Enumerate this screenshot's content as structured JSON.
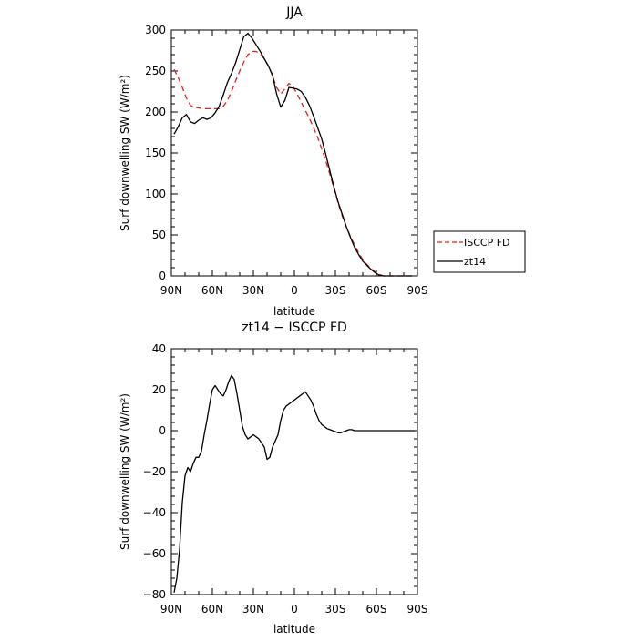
{
  "chart_data": [
    {
      "type": "line",
      "title": "JJA",
      "xlabel": "latitude",
      "ylabel": "Surf downwelling SW (W/m²)",
      "xlim": [
        90,
        -90
      ],
      "ylim": [
        0,
        300
      ],
      "xticks": [
        90,
        60,
        30,
        0,
        -30,
        -60,
        -90
      ],
      "xtick_labels": [
        "90N",
        "60N",
        "30N",
        "0",
        "30S",
        "60S",
        "90S"
      ],
      "yticks": [
        0,
        50,
        100,
        150,
        200,
        250,
        300
      ],
      "ytick_labels": [
        "0",
        "50",
        "100",
        "150",
        "200",
        "250",
        "300"
      ],
      "grid": false,
      "legend_position": "right",
      "series": [
        {
          "name": "ISCCP FD",
          "color": "#e0201b",
          "dash": "dashed",
          "x": [
            88,
            85,
            82,
            79,
            76,
            73,
            70,
            67,
            64,
            61,
            58,
            55,
            52,
            49,
            46,
            43,
            40,
            37,
            34,
            31,
            28,
            25,
            22,
            19,
            16,
            13,
            10,
            7,
            4,
            1,
            -2,
            -5,
            -8,
            -11,
            -14,
            -17,
            -20,
            -23,
            -26,
            -29,
            -32,
            -35,
            -38,
            -41,
            -44,
            -47,
            -50,
            -53,
            -56,
            -59,
            -62,
            -65,
            -68,
            -71,
            -74,
            -77,
            -80,
            -83,
            -86
          ],
          "y": [
            252,
            242,
            230,
            217,
            208,
            206,
            205,
            204,
            204,
            204,
            204,
            204,
            207,
            214,
            225,
            238,
            250,
            261,
            270,
            274,
            274,
            271,
            265,
            256,
            244,
            230,
            222,
            228,
            235,
            231,
            222,
            212,
            202,
            192,
            181,
            169,
            155,
            140,
            124,
            106,
            89,
            73,
            60,
            48,
            38,
            28,
            20,
            14,
            9,
            5,
            2,
            0,
            0,
            0,
            0,
            0,
            0,
            0,
            0
          ]
        },
        {
          "name": "zt14",
          "color": "#000000",
          "dash": "solid",
          "x": [
            88,
            85,
            82,
            79,
            76,
            73,
            70,
            67,
            64,
            61,
            58,
            55,
            52,
            49,
            46,
            43,
            40,
            37,
            34,
            31,
            28,
            25,
            22,
            19,
            16,
            13,
            10,
            7,
            4,
            1,
            -2,
            -5,
            -8,
            -11,
            -14,
            -17,
            -20,
            -23,
            -26,
            -29,
            -32,
            -35,
            -38,
            -41,
            -44,
            -47,
            -50,
            -53,
            -56,
            -59,
            -62,
            -65,
            -68,
            -71,
            -74,
            -77,
            -80,
            -83,
            -86
          ],
          "y": [
            173,
            182,
            193,
            197,
            188,
            186,
            190,
            193,
            191,
            193,
            199,
            207,
            221,
            236,
            247,
            260,
            276,
            292,
            296,
            290,
            282,
            274,
            265,
            256,
            245,
            222,
            206,
            214,
            230,
            229,
            228,
            225,
            218,
            208,
            195,
            181,
            167,
            148,
            128,
            108,
            90,
            75,
            60,
            47,
            35,
            26,
            18,
            13,
            8,
            4,
            1,
            0,
            0,
            0,
            0,
            0,
            0,
            0,
            0
          ]
        }
      ]
    },
    {
      "type": "line",
      "title": "zt14 − ISCCP FD",
      "xlabel": "latitude",
      "ylabel": "Surf downwelling SW (W/m²)",
      "xlim": [
        90,
        -90
      ],
      "ylim": [
        -80,
        40
      ],
      "xticks": [
        90,
        60,
        30,
        0,
        -30,
        -60,
        -90
      ],
      "xtick_labels": [
        "90N",
        "60N",
        "30N",
        "0",
        "30S",
        "60S",
        "90S"
      ],
      "yticks": [
        -80,
        -60,
        -40,
        -20,
        0,
        20,
        40
      ],
      "ytick_labels": [
        "−80",
        "−60",
        "−40",
        "−20",
        "0",
        "20",
        "40"
      ],
      "grid": false,
      "series": [
        {
          "color": "#000000",
          "dash": "solid",
          "x": [
            88,
            86,
            84,
            82,
            80,
            78,
            76,
            74,
            72,
            70,
            68,
            66,
            64,
            62,
            60,
            58,
            56,
            54,
            52,
            50,
            48,
            46,
            44,
            42,
            40,
            38,
            36,
            34,
            32,
            30,
            28,
            26,
            24,
            22,
            20,
            18,
            16,
            14,
            12,
            10,
            8,
            6,
            4,
            2,
            0,
            -2,
            -4,
            -6,
            -8,
            -10,
            -12,
            -14,
            -16,
            -18,
            -20,
            -22,
            -24,
            -26,
            -28,
            -30,
            -32,
            -34,
            -36,
            -38,
            -40,
            -42,
            -44,
            -46,
            -48,
            -50,
            -52,
            -54,
            -56,
            -58,
            -60,
            -62,
            -64,
            -66,
            -68,
            -70,
            -75,
            -80,
            -85,
            -88
          ],
          "y": [
            -79,
            -72,
            -58,
            -35,
            -22,
            -18,
            -20,
            -16,
            -13,
            -13,
            -10,
            -2,
            5,
            13,
            20,
            22,
            20,
            18,
            17,
            20,
            24,
            27,
            25,
            18,
            10,
            2,
            -2,
            -4,
            -3,
            -2,
            -3,
            -4,
            -6,
            -8,
            -14,
            -13,
            -8,
            -5,
            -2,
            5,
            10,
            12,
            13,
            14,
            15,
            16,
            17,
            18,
            19,
            17,
            15,
            12,
            8,
            5,
            3,
            2,
            1,
            0.5,
            0,
            -0.5,
            -1,
            -1,
            -0.5,
            0,
            0.5,
            0.5,
            0,
            0,
            0,
            0,
            0,
            0,
            0,
            0,
            0,
            0,
            0,
            0,
            0,
            0,
            0,
            0,
            0,
            0
          ]
        }
      ]
    }
  ]
}
